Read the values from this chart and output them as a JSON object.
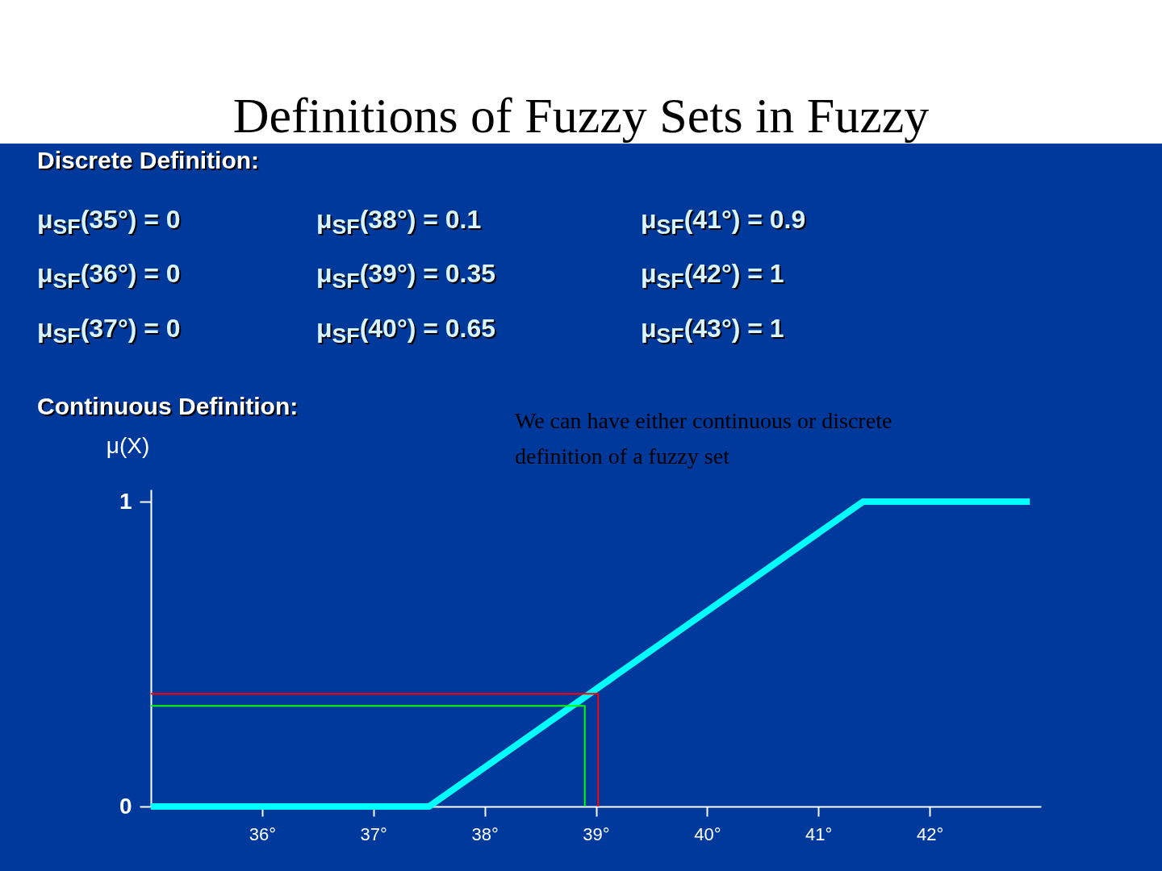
{
  "chart_data": {
    "type": "line",
    "title": "Definitions of Fuzzy Sets in Fuzzy",
    "ylabel": "μ(X)",
    "annotations": [
      "Discrete Definition:",
      "μ$_{SF}$(35°) = 0",
      "μ$_{SF}$(38°) = 0.1",
      "μ$_{SF}$(41°) = 0.9",
      "μ$_{SF}$(36°) = 0",
      "μ$_{SF}$(39°) = 0.35",
      "μ$_{SF}$(42°) = 1",
      "μ$_{SF}$(37°) = 0",
      "μ$_{SF}$(40°) = 0.65",
      "μ$_{SF}$(43°) = 1",
      "Continuous Definition:",
      "We can have either continuous or discrete definition of a fuzzy set"
    ],
    "series": [
      {
        "color": "#00ffff",
        "x": [
          35,
          37.5,
          41.4,
          42.9
        ],
        "values": [
          0,
          0,
          1,
          1
        ]
      },
      {
        "color": "#ff0000",
        "x": [
          35,
          39.02,
          39.02
        ],
        "values": [
          0.37,
          0.37,
          0
        ]
      },
      {
        "color": "#00ff00",
        "x": [
          35,
          38.9,
          38.9
        ],
        "values": [
          0.33,
          0.33,
          0
        ]
      }
    ],
    "xlim": [
      35,
      43
    ],
    "xticks": [
      {
        "value": 36,
        "label": "36°"
      },
      {
        "value": 37,
        "label": "37°"
      },
      {
        "value": 38,
        "label": "38°"
      },
      {
        "value": 39,
        "label": "39°"
      },
      {
        "value": 40,
        "label": "40°"
      },
      {
        "value": 41,
        "label": "41°"
      },
      {
        "value": 42,
        "label": "42°"
      }
    ],
    "ylim": [
      0,
      1.04
    ],
    "yticks": [
      0,
      1
    ],
    "grid": false,
    "marker": "none",
    "line_style": "solid"
  }
}
